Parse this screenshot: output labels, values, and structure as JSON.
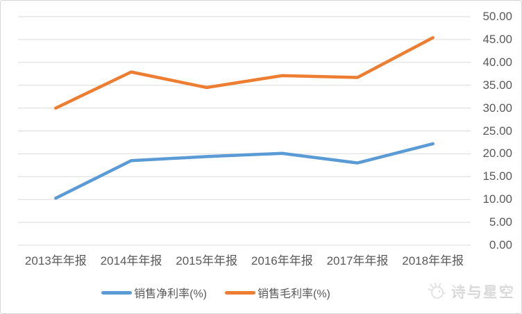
{
  "chart_data": {
    "type": "line",
    "title": "",
    "xlabel": "",
    "ylabel": "",
    "categories": [
      "2013年年报",
      "2014年年报",
      "2015年年报",
      "2016年年报",
      "2017年年报",
      "2018年年报"
    ],
    "series": [
      {
        "name": "销售净利率(%)",
        "color": "#5B9BD5",
        "values": [
          10.3,
          18.5,
          19.4,
          20.1,
          18.0,
          22.2
        ]
      },
      {
        "name": "销售毛利率(%)",
        "color": "#ED7D31",
        "values": [
          30.0,
          37.9,
          34.5,
          37.1,
          36.7,
          45.4
        ]
      }
    ],
    "ylim": [
      0,
      50
    ],
    "ytick_step": 5,
    "ytick_labels": [
      "0.00",
      "5.00",
      "10.00",
      "15.00",
      "20.00",
      "25.00",
      "30.00",
      "35.00",
      "40.00",
      "45.00",
      "50.00"
    ],
    "grid": true,
    "gridline_color": "#d9d9d9",
    "axis_text_color": "#595959",
    "yaxis_side": "right",
    "legend_position": "bottom"
  },
  "watermark": {
    "text": "诗与星空",
    "icon": "bird-logo-icon"
  }
}
